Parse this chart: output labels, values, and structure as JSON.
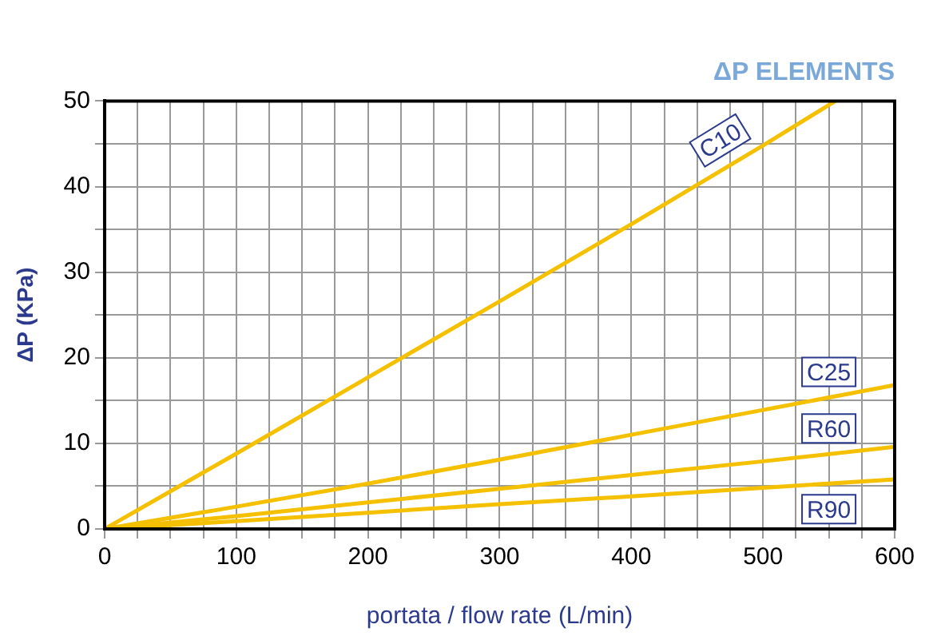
{
  "chart_data": {
    "type": "line",
    "title": "ΔP ELEMENTS",
    "xlabel": "portata / flow rate (L/min)",
    "ylabel": "ΔP (KPa)",
    "series": [
      {
        "name": "C10",
        "color": "#f5c000",
        "x": [
          0,
          100,
          200,
          300,
          400,
          500,
          555
        ],
        "values": [
          0,
          8.8,
          17.7,
          26.6,
          35.6,
          44.8,
          50
        ]
      },
      {
        "name": "C25",
        "color": "#f5c000",
        "x": [
          0,
          100,
          200,
          300,
          400,
          500,
          600
        ],
        "values": [
          0,
          2.6,
          5.3,
          8.1,
          11.0,
          13.9,
          16.8
        ]
      },
      {
        "name": "R60",
        "color": "#f5c000",
        "x": [
          0,
          100,
          200,
          300,
          400,
          500,
          600
        ],
        "values": [
          0,
          1.5,
          3.1,
          4.7,
          6.3,
          7.9,
          9.6
        ]
      },
      {
        "name": "R90",
        "color": "#f5c000",
        "x": [
          0,
          100,
          200,
          300,
          400,
          500,
          600
        ],
        "values": [
          0,
          0.9,
          1.9,
          2.9,
          3.8,
          4.8,
          5.8
        ]
      }
    ],
    "xlim": [
      0,
      600
    ],
    "xticks": [
      0,
      100,
      200,
      300,
      400,
      500,
      600
    ],
    "ylim": [
      0,
      50
    ],
    "yticks": [
      0,
      10,
      20,
      30,
      40,
      50
    ],
    "grid": true,
    "legend": false,
    "marker": "none",
    "line_style": "solid"
  }
}
